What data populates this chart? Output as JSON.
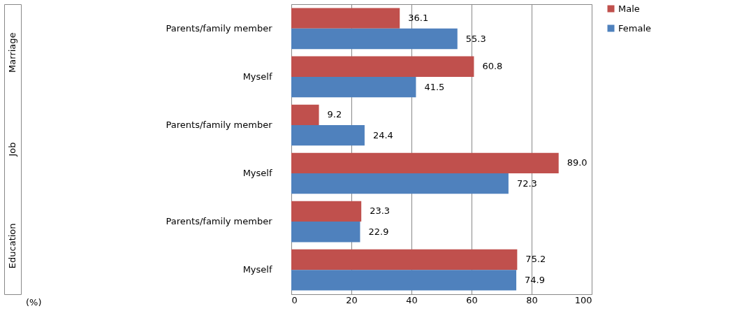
{
  "chart_data": {
    "type": "bar",
    "orientation": "horizontal",
    "categories": [
      "Parents/family member",
      "Myself",
      "Parents/family member",
      "Myself",
      "Parents/family member",
      "Myself"
    ],
    "series": [
      {
        "name": "Male",
        "color": "#c0504d",
        "values": [
          36.1,
          60.8,
          9.2,
          89.0,
          23.3,
          75.2
        ],
        "value_labels": [
          "36.1",
          "60.8",
          "9.2",
          "89.0",
          "23.3",
          "75.2"
        ]
      },
      {
        "name": "Female",
        "color": "#4f81bd",
        "values": [
          55.3,
          41.5,
          24.4,
          72.3,
          22.9,
          74.9
        ],
        "value_labels": [
          "55.3",
          "41.5",
          "24.4",
          "72.3",
          "22.9",
          "74.9"
        ]
      }
    ],
    "annotations": [
      "Marriage",
      "Job",
      "Education",
      "(%)"
    ],
    "xlim": [
      0,
      100
    ],
    "xticks": [
      0,
      20,
      40,
      60,
      80,
      100
    ],
    "grid": "x",
    "legend": "right"
  }
}
